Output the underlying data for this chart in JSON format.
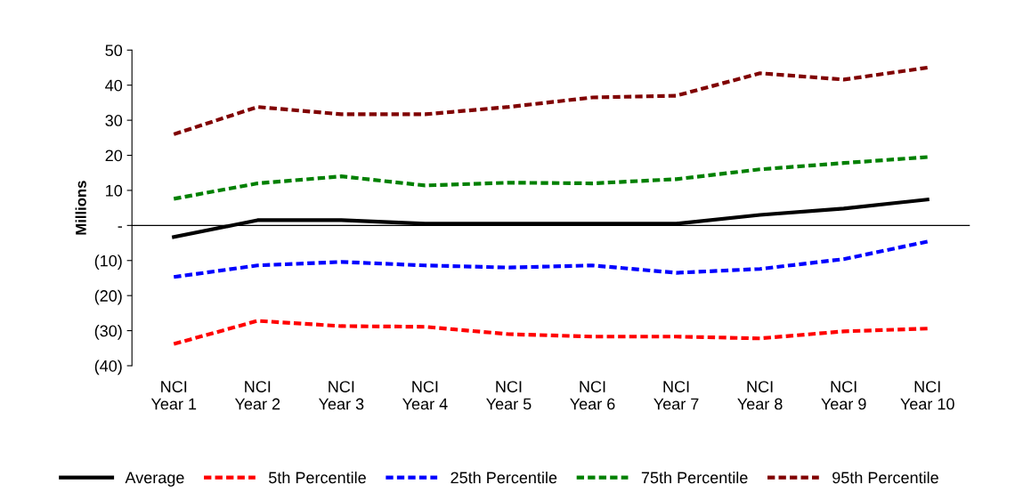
{
  "chart_data": {
    "type": "line",
    "ylabel": "Millions",
    "categories": [
      "NCI\nYear 1",
      "NCI\nYear 2",
      "NCI\nYear 3",
      "NCI\nYear 4",
      "NCI\nYear 5",
      "NCI\nYear 6",
      "NCI\nYear 7",
      "NCI\nYear 8",
      "NCI\nYear 9",
      "NCI\nYear 10"
    ],
    "series": [
      {
        "name": "Average",
        "color": "#000000",
        "line_style": "solid",
        "values": [
          -3.3,
          1.5,
          1.5,
          0.5,
          0.5,
          0.5,
          0.5,
          3,
          4.8,
          7.4
        ]
      },
      {
        "name": "5th Percentile",
        "color": "#ff0000",
        "line_style": "dashed",
        "values": [
          -33.8,
          -27.2,
          -28.7,
          -28.9,
          -31,
          -31.7,
          -31.7,
          -32.2,
          -30.2,
          -29.4
        ]
      },
      {
        "name": "25th Percentile",
        "color": "#0000ff",
        "line_style": "dashed",
        "values": [
          -14.7,
          -11.4,
          -10.4,
          -11.4,
          -12,
          -11.4,
          -13.5,
          -12.4,
          -9.6,
          -4.6
        ]
      },
      {
        "name": "75th Percentile",
        "color": "#008000",
        "line_style": "dashed",
        "values": [
          7.6,
          12,
          14,
          11.4,
          12.2,
          12,
          13.2,
          16,
          17.8,
          19.5
        ]
      },
      {
        "name": "95th Percentile",
        "color": "#800000",
        "line_style": "dashed",
        "values": [
          26,
          33.8,
          31.7,
          31.7,
          33.8,
          36.5,
          37,
          43.4,
          41.6,
          45
        ]
      }
    ],
    "ylim": [
      -40,
      50
    ],
    "yticks": [
      {
        "value": -40,
        "label": "(40)"
      },
      {
        "value": -30,
        "label": "(30)"
      },
      {
        "value": -20,
        "label": "(20)"
      },
      {
        "value": -10,
        "label": "(10)"
      },
      {
        "value": 0,
        "label": "-"
      },
      10,
      20,
      30,
      40,
      50
    ],
    "legend": "bottom",
    "marker": "none"
  }
}
